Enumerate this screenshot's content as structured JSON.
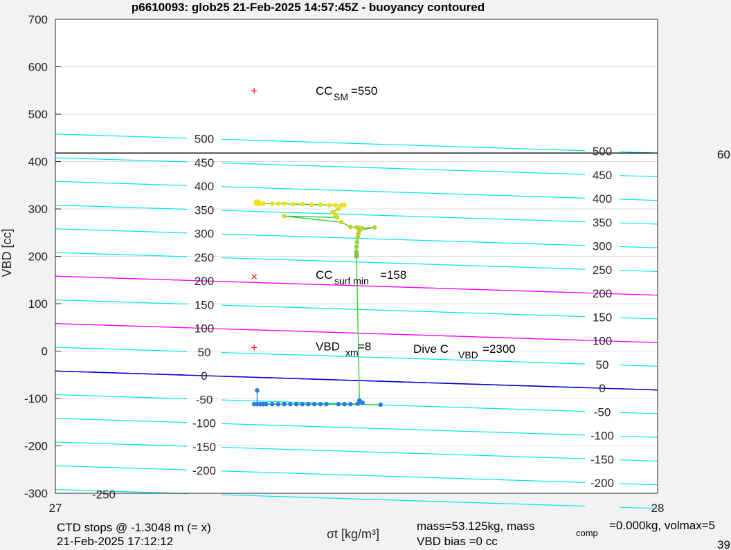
{
  "chart_data": {
    "type": "scatter",
    "title": "p6610093: glob25 21-Feb-2025 14:57:45Z - buoyancy contoured",
    "xlabel": "σt [kg/m³]",
    "ylabel": "VBD [cc]",
    "xlim": [
      27,
      28
    ],
    "ylim": [
      -300,
      700
    ],
    "x_ticks": [
      "27",
      "28"
    ],
    "y_ticks": [
      700,
      600,
      500,
      400,
      300,
      200,
      100,
      0,
      -100,
      -200,
      -300
    ],
    "grid": true,
    "colors": {
      "contour": "#00e5ee",
      "neutral_contour": "#0000c8",
      "limit_contour": "#ff00ff",
      "threshold_line": "#000000",
      "marker": "#ff0000",
      "track_line": "#22cc22",
      "dive_start": "#f2e01a",
      "dive_end": "#2a7de1"
    },
    "contours": [
      {
        "label": "500",
        "left_value": 458,
        "right_value": 418
      },
      {
        "label": "450",
        "left_value": 408,
        "right_value": 368
      },
      {
        "label": "400",
        "left_value": 358,
        "right_value": 318
      },
      {
        "label": "350",
        "left_value": 308,
        "right_value": 268
      },
      {
        "label": "300",
        "left_value": 258,
        "right_value": 218
      },
      {
        "label": "250",
        "left_value": 208,
        "right_value": 168
      },
      {
        "label": "200",
        "left_value": 158,
        "right_value": 118
      },
      {
        "label": "150",
        "left_value": 108,
        "right_value": 68
      },
      {
        "label": "100",
        "left_value": 58,
        "right_value": 18
      },
      {
        "label": "50",
        "left_value": 8,
        "right_value": -32
      },
      {
        "label": "0",
        "left_value": -42,
        "right_value": -82
      },
      {
        "label": "-50",
        "left_value": -92,
        "right_value": -132
      },
      {
        "label": "-100",
        "left_value": -142,
        "right_value": -182
      },
      {
        "label": "-150",
        "left_value": -192,
        "right_value": -232
      },
      {
        "label": "-200",
        "left_value": -242,
        "right_value": -282
      },
      {
        "label": "-250",
        "left_value": -292,
        "right_value": -332
      }
    ],
    "contour_labels_left": [
      "500",
      "450",
      "400",
      "350",
      "300",
      "250",
      "200",
      "150",
      "100",
      "50",
      "0",
      "-50",
      "-100",
      "-150",
      "-200",
      "-250"
    ],
    "contour_labels_right": [
      "500",
      "450",
      "400",
      "350",
      "300",
      "250",
      "200",
      "150",
      "100",
      "50",
      "0",
      "-50",
      "-100",
      "-150",
      "-200"
    ],
    "threshold_value": 418,
    "threshold_label": "60",
    "markers": [
      {
        "symbol": "+",
        "x": 27.33,
        "y": 550
      },
      {
        "symbol": "×",
        "x": 27.33,
        "y": 158
      },
      {
        "symbol": "+",
        "x": 27.33,
        "y": 8
      }
    ],
    "annotations": {
      "cc_sm": {
        "base": "CC",
        "sub": "SM",
        "value": "=550"
      },
      "cc_surf": {
        "base": "CC",
        "sub": "surf min",
        "value": "=158"
      },
      "vbd_xm": {
        "base": "VBD",
        "sub": "xm",
        "value": "=8"
      },
      "dive_c": {
        "base": "Dive C",
        "sub": "VBD",
        "value": "=2300"
      }
    },
    "series": [
      {
        "points": [
          [
            27.335,
            313
          ],
          [
            27.34,
            311
          ],
          [
            27.345,
            311
          ],
          [
            27.36,
            311
          ],
          [
            27.37,
            311
          ],
          [
            27.38,
            311
          ],
          [
            27.395,
            310
          ],
          [
            27.41,
            310
          ],
          [
            27.425,
            309
          ],
          [
            27.44,
            309
          ],
          [
            27.455,
            308
          ],
          [
            27.465,
            308
          ],
          [
            27.475,
            308
          ],
          [
            27.48,
            308
          ],
          [
            27.47,
            300
          ],
          [
            27.46,
            293
          ],
          [
            27.465,
            288
          ],
          [
            27.468,
            282
          ],
          [
            27.38,
            285
          ],
          [
            27.475,
            272
          ],
          [
            27.49,
            262
          ],
          [
            27.5,
            261
          ],
          [
            27.505,
            260
          ],
          [
            27.51,
            259
          ],
          [
            27.53,
            261
          ],
          [
            27.505,
            255
          ],
          [
            27.503,
            248
          ],
          [
            27.502,
            240
          ],
          [
            27.501,
            230
          ],
          [
            27.5,
            220
          ],
          [
            27.5,
            210
          ],
          [
            27.5,
            205
          ],
          [
            27.5,
            200
          ],
          [
            27.505,
            -104
          ],
          [
            27.51,
            -109
          ],
          [
            27.502,
            -111
          ],
          [
            27.49,
            -112
          ],
          [
            27.48,
            -112
          ],
          [
            27.47,
            -112
          ],
          [
            27.45,
            -112
          ],
          [
            27.44,
            -112
          ],
          [
            27.43,
            -112
          ],
          [
            27.42,
            -112
          ],
          [
            27.41,
            -112
          ],
          [
            27.4,
            -112
          ],
          [
            27.39,
            -112
          ],
          [
            27.38,
            -112
          ],
          [
            27.37,
            -112
          ],
          [
            27.36,
            -112
          ],
          [
            27.35,
            -112
          ],
          [
            27.345,
            -112
          ],
          [
            27.34,
            -112
          ],
          [
            27.335,
            -112
          ],
          [
            27.33,
            -112
          ],
          [
            27.54,
            -113
          ],
          [
            27.335,
            -83
          ]
        ]
      }
    ]
  },
  "footer": {
    "ctd_stops": "CTD stops @ -1.3048 m (= x)",
    "timestamp": "21-Feb-2025 17:12:12",
    "mass_a": "mass=53.125kg, mass",
    "mass_sub": "comp",
    "mass_b": "=0.000kg, volmax=5",
    "vbd_bias": "VBD bias =0 cc",
    "corner_number": "39"
  }
}
